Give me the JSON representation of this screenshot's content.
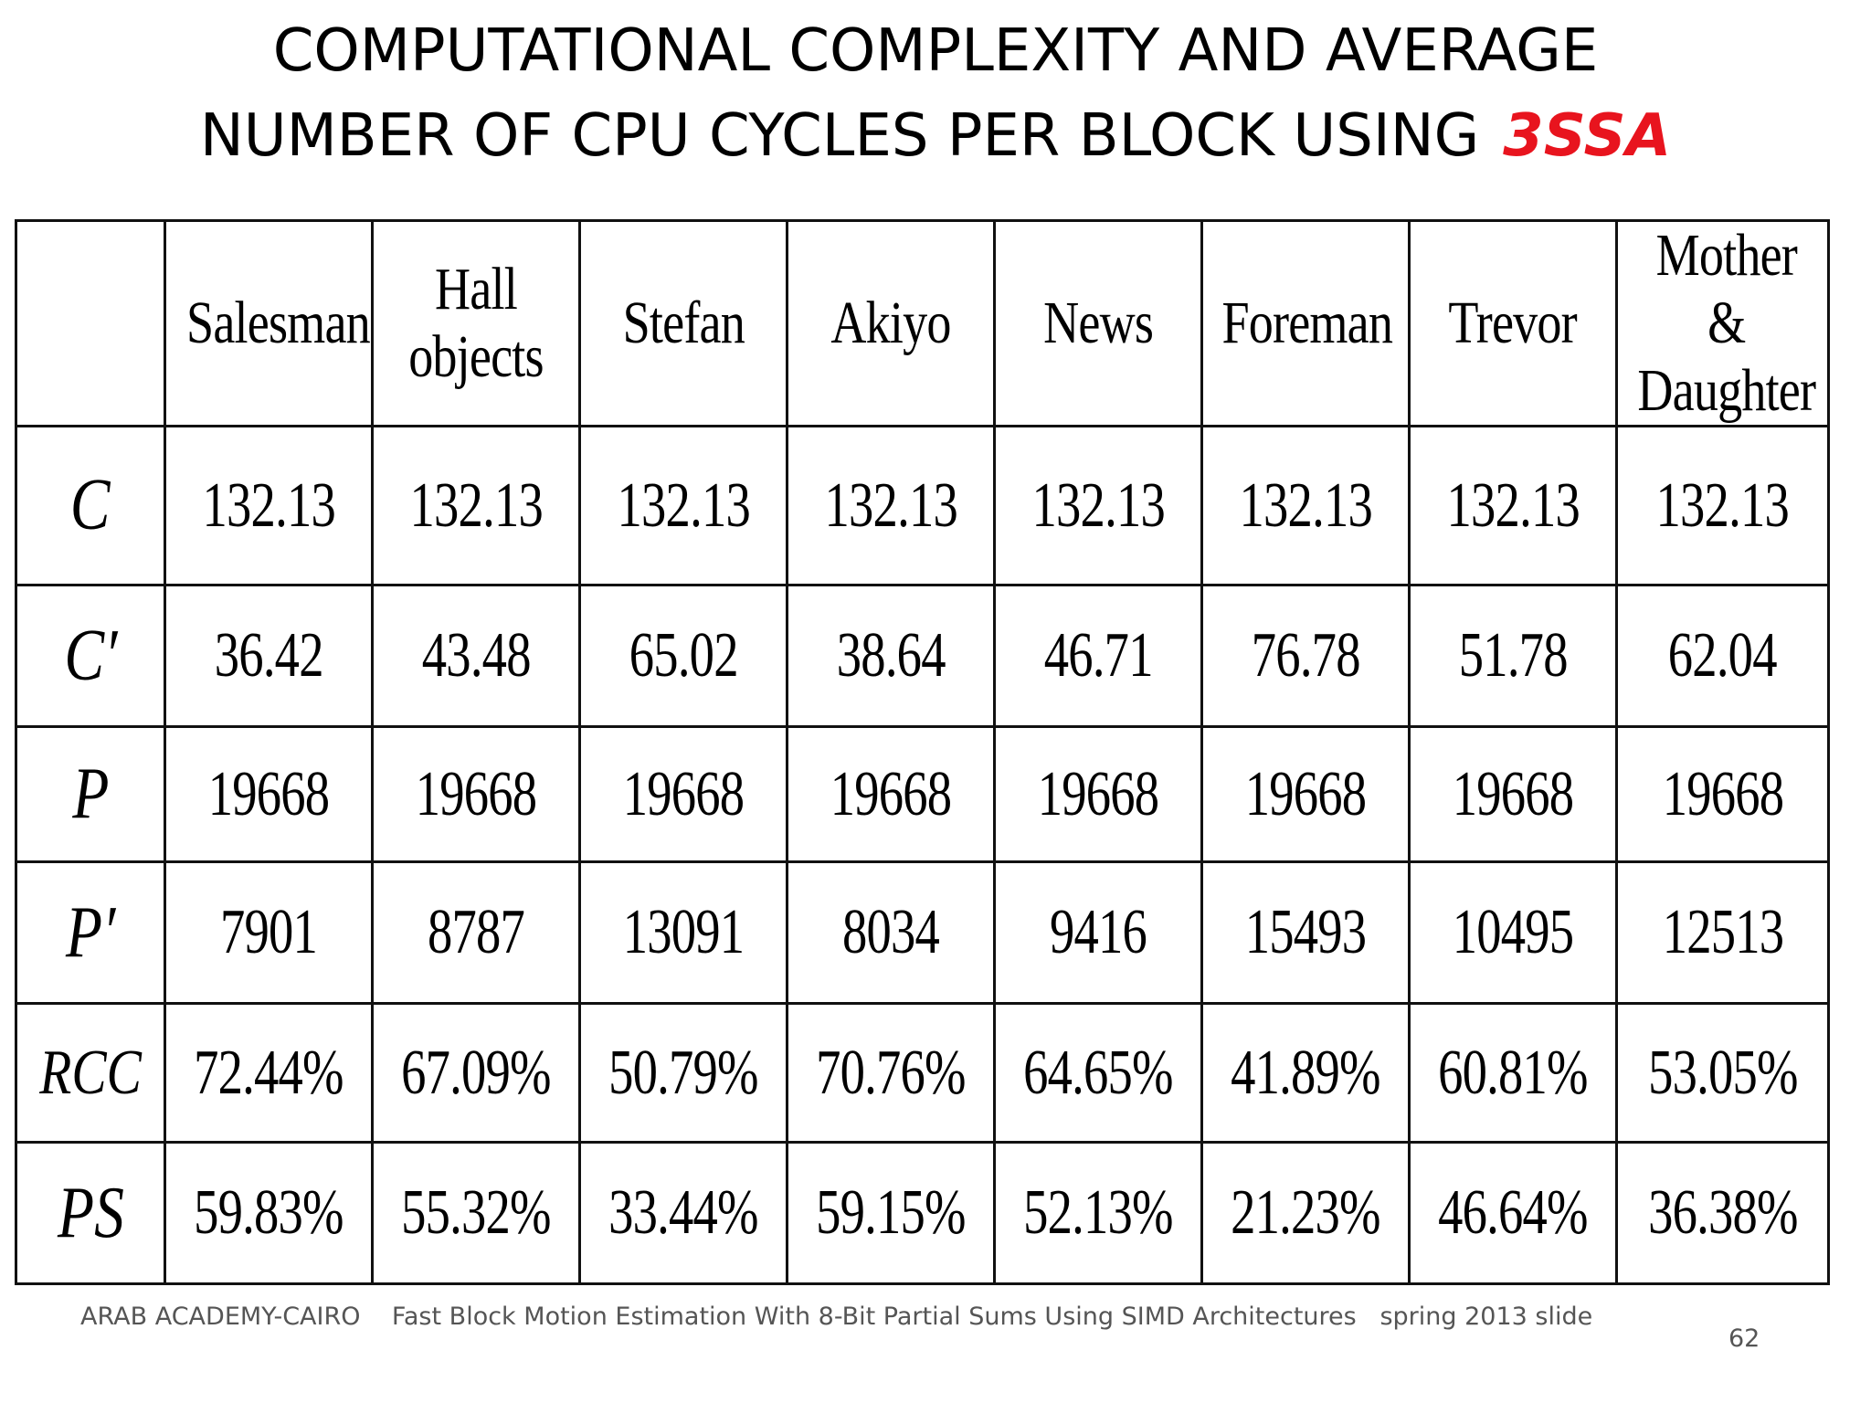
{
  "title": {
    "line1": "COMPUTATIONAL COMPLEXITY AND AVERAGE",
    "line2_main": "NUMBER OF CPU CYCLES PER BLOCK USING",
    "line2_accent": "3SSA",
    "accent_color": "#e8141e"
  },
  "table": {
    "columns": [
      [
        "Salesman"
      ],
      [
        "Hall",
        "objects"
      ],
      [
        "Stefan"
      ],
      [
        "Akiyo"
      ],
      [
        "News"
      ],
      [
        "Foreman"
      ],
      [
        "Trevor"
      ],
      [
        "Mother &",
        "Daughter"
      ]
    ],
    "rows": [
      {
        "label": "C",
        "values": [
          "132.13",
          "132.13",
          "132.13",
          "132.13",
          "132.13",
          "132.13",
          "132.13",
          "132.13"
        ]
      },
      {
        "label": "C′",
        "values": [
          "36.42",
          "43.48",
          "65.02",
          "38.64",
          "46.71",
          "76.78",
          "51.78",
          "62.04"
        ]
      },
      {
        "label": "P",
        "values": [
          "19668",
          "19668",
          "19668",
          "19668",
          "19668",
          "19668",
          "19668",
          "19668"
        ]
      },
      {
        "label": "P′",
        "values": [
          "7901",
          "8787",
          "13091",
          "8034",
          "9416",
          "15493",
          "10495",
          "12513"
        ]
      },
      {
        "label": "RCC",
        "values": [
          "72.44%",
          "67.09%",
          "50.79%",
          "70.76%",
          "64.65%",
          "41.89%",
          "60.81%",
          "53.05%"
        ]
      },
      {
        "label": "PS",
        "values": [
          "59.83%",
          "55.32%",
          "33.44%",
          "59.15%",
          "52.13%",
          "21.23%",
          "46.64%",
          "36.38%"
        ]
      }
    ]
  },
  "footer": {
    "text": "ARAB ACADEMY-CAIRO    Fast Block Motion Estimation With 8-Bit Partial Sums Using SIMD Architectures   spring 2013 slide",
    "slide_number": "62"
  }
}
